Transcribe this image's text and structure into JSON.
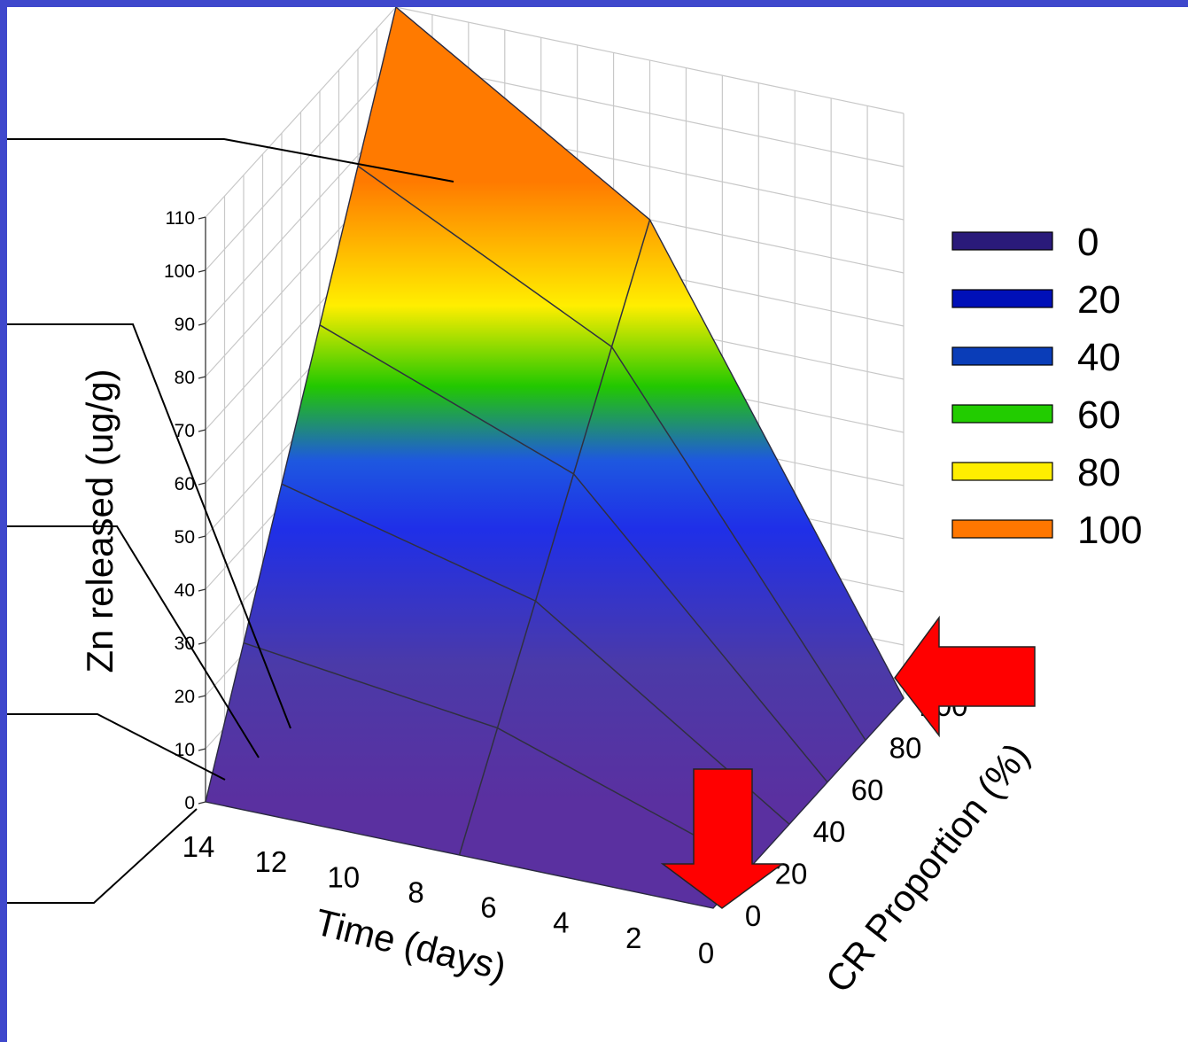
{
  "chart_data": {
    "type": "surface",
    "zlabel": "Zn released (ug/g)",
    "xlabel": "Time (days)",
    "ylabel": "CR Proportion (%)",
    "z_ticks": [
      "0",
      "10",
      "20",
      "30",
      "40",
      "50",
      "60",
      "70",
      "80",
      "90",
      "100",
      "110"
    ],
    "x_ticks": [
      "14",
      "12",
      "10",
      "8",
      "6",
      "4",
      "2",
      "0"
    ],
    "y_ticks": [
      "0",
      "20",
      "40",
      "60",
      "80",
      "100"
    ],
    "zlim": [
      0,
      110
    ],
    "xlim": [
      0,
      14
    ],
    "ylim": [
      0,
      100
    ],
    "grid": true,
    "legend_position": "right",
    "legend": [
      {
        "label": "0",
        "color": "#2a1a7a"
      },
      {
        "label": "20",
        "color": "#0010b8"
      },
      {
        "label": "40",
        "color": "#0a3db8"
      },
      {
        "label": "60",
        "color": "#22cc00"
      },
      {
        "label": "80",
        "color": "#ffee00"
      },
      {
        "label": "100",
        "color": "#ff7700"
      }
    ],
    "surface_points": [
      {
        "time": 0,
        "cr": 0,
        "zn": 0
      },
      {
        "time": 7,
        "cr": 0,
        "zn": 0
      },
      {
        "time": 14,
        "cr": 0,
        "zn": 0
      },
      {
        "time": 0,
        "cr": 100,
        "zn": 0
      },
      {
        "time": 7,
        "cr": 100,
        "zn": 80
      },
      {
        "time": 14,
        "cr": 100,
        "zn": 110
      }
    ]
  }
}
